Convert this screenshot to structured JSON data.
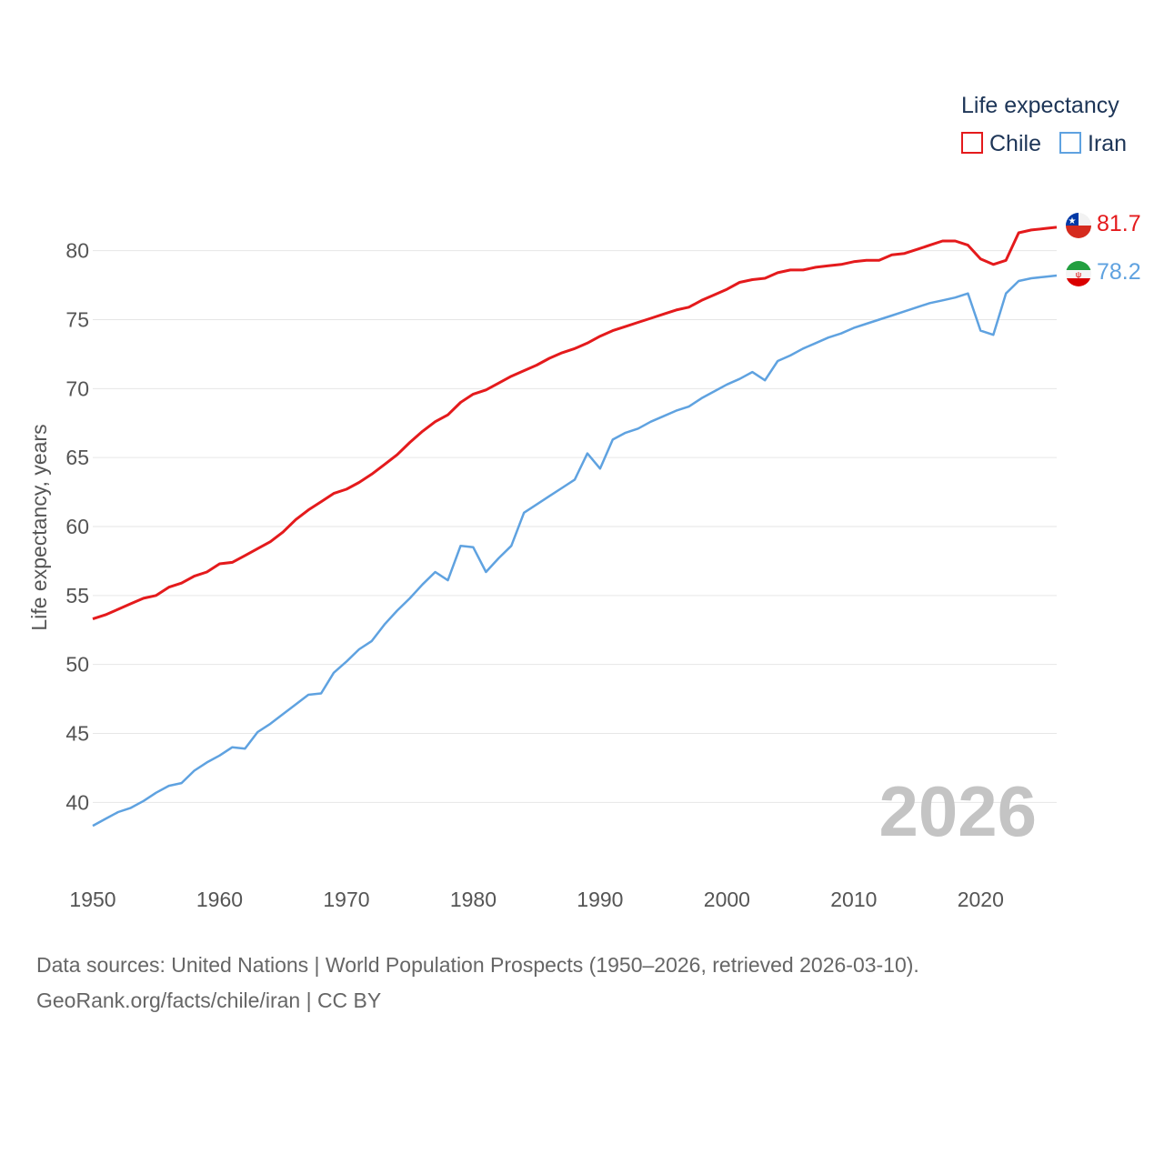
{
  "legend": {
    "title": "Life expectancy"
  },
  "source": {
    "line1": "Data sources: United Nations | World Population Prospects (1950–2026, retrieved 2026-03-10).",
    "line2": "GeoRank.org/facts/chile/iran | CC BY"
  },
  "chart_data": {
    "type": "line",
    "title": "Life expectancy",
    "ylabel": "Life expectancy, years",
    "xlabel": "",
    "year_label": "2026",
    "xlim": [
      1950,
      2026
    ],
    "ylim": [
      36,
      84
    ],
    "x_ticks": [
      1950,
      1960,
      1970,
      1980,
      1990,
      2000,
      2010,
      2020
    ],
    "y_ticks": [
      40,
      45,
      50,
      55,
      60,
      65,
      70,
      75,
      80
    ],
    "x": [
      1950,
      1951,
      1952,
      1953,
      1954,
      1955,
      1956,
      1957,
      1958,
      1959,
      1960,
      1961,
      1962,
      1963,
      1964,
      1965,
      1966,
      1967,
      1968,
      1969,
      1970,
      1971,
      1972,
      1973,
      1974,
      1975,
      1976,
      1977,
      1978,
      1979,
      1980,
      1981,
      1982,
      1983,
      1984,
      1985,
      1986,
      1987,
      1988,
      1989,
      1990,
      1991,
      1992,
      1993,
      1994,
      1995,
      1996,
      1997,
      1998,
      1999,
      2000,
      2001,
      2002,
      2003,
      2004,
      2005,
      2006,
      2007,
      2008,
      2009,
      2010,
      2011,
      2012,
      2013,
      2014,
      2015,
      2016,
      2017,
      2018,
      2019,
      2020,
      2021,
      2022,
      2023,
      2024,
      2025,
      2026
    ],
    "series": [
      {
        "name": "Chile",
        "color": "#e41a1c",
        "end_label": "81.7",
        "flag": "chile-flag-icon",
        "values": [
          53.3,
          53.6,
          54.0,
          54.4,
          54.8,
          55.0,
          55.6,
          55.9,
          56.4,
          56.7,
          57.3,
          57.4,
          57.9,
          58.4,
          58.9,
          59.6,
          60.5,
          61.2,
          61.8,
          62.4,
          62.7,
          63.2,
          63.8,
          64.5,
          65.2,
          66.1,
          66.9,
          67.6,
          68.1,
          69.0,
          69.6,
          69.9,
          70.4,
          70.9,
          71.3,
          71.7,
          72.2,
          72.6,
          72.9,
          73.3,
          73.8,
          74.2,
          74.5,
          74.8,
          75.1,
          75.4,
          75.7,
          75.9,
          76.4,
          76.8,
          77.2,
          77.7,
          77.9,
          78.0,
          78.4,
          78.6,
          78.6,
          78.8,
          78.9,
          79.0,
          79.2,
          79.3,
          79.3,
          79.7,
          79.8,
          80.1,
          80.4,
          80.7,
          80.7,
          80.4,
          79.4,
          79.0,
          79.3,
          81.3,
          81.5,
          81.6,
          81.7
        ]
      },
      {
        "name": "Iran",
        "color": "#5fa2e0",
        "end_label": "78.2",
        "flag": "iran-flag-icon",
        "values": [
          38.3,
          38.8,
          39.3,
          39.6,
          40.1,
          40.7,
          41.2,
          41.4,
          42.3,
          42.9,
          43.4,
          44.0,
          43.9,
          45.1,
          45.7,
          46.4,
          47.1,
          47.8,
          47.9,
          49.4,
          50.2,
          51.1,
          51.7,
          52.9,
          53.9,
          54.8,
          55.8,
          56.7,
          56.1,
          58.6,
          58.5,
          56.7,
          57.7,
          58.6,
          61.0,
          61.6,
          62.2,
          62.8,
          63.4,
          65.3,
          64.2,
          66.3,
          66.8,
          67.1,
          67.6,
          68.0,
          68.4,
          68.7,
          69.3,
          69.8,
          70.3,
          70.7,
          71.2,
          70.6,
          72.0,
          72.4,
          72.9,
          73.3,
          73.7,
          74.0,
          74.4,
          74.7,
          75.0,
          75.3,
          75.6,
          75.9,
          76.2,
          76.4,
          76.6,
          76.9,
          74.2,
          73.9,
          76.9,
          77.8,
          78.0,
          78.1,
          78.2
        ]
      }
    ]
  }
}
